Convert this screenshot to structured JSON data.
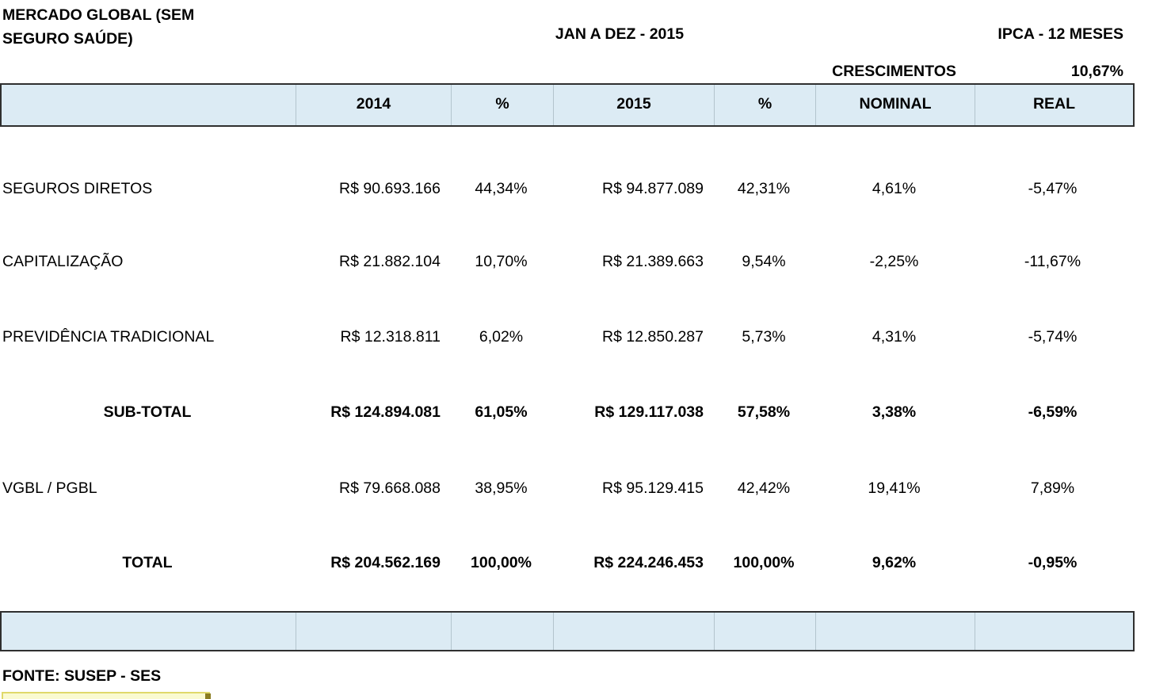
{
  "titles": {
    "report": "MERCADO GLOBAL (SEM SEGURO SAÚDE)",
    "period": "JAN A DEZ - 2015",
    "ipca": "IPCA - 12 MESES",
    "crescimentos": "CRESCIMENTOS",
    "ipca_value": "10,67%"
  },
  "table": {
    "columns": [
      "2014",
      "%",
      "2015",
      "%",
      "NOMINAL",
      "REAL"
    ],
    "rows": [
      {
        "label": "SEGUROS DIRETOS",
        "v2014": "R$ 90.693.166",
        "p2014": "44,34%",
        "v2015": "R$ 94.877.089",
        "p2015": "42,31%",
        "nominal": "4,61%",
        "real": "-5,47%"
      },
      {
        "label": "CAPITALIZAÇÃO",
        "v2014": "R$ 21.882.104",
        "p2014": "10,70%",
        "v2015": "R$ 21.389.663",
        "p2015": "9,54%",
        "nominal": "-2,25%",
        "real": "-11,67%"
      },
      {
        "label": "PREVIDÊNCIA TRADICIONAL",
        "v2014": "R$ 12.318.811",
        "p2014": "6,02%",
        "v2015": "R$ 12.850.287",
        "p2015": "5,73%",
        "nominal": "4,31%",
        "real": "-5,74%"
      },
      {
        "label": "SUB-TOTAL",
        "v2014": "R$ 124.894.081",
        "p2014": "61,05%",
        "v2015": "R$ 129.117.038",
        "p2015": "57,58%",
        "nominal": "3,38%",
        "real": "-6,59%"
      },
      {
        "label": "VGBL / PGBL",
        "v2014": "R$ 79.668.088",
        "p2014": "38,95%",
        "v2015": "R$ 95.129.415",
        "p2015": "42,42%",
        "nominal": "19,41%",
        "real": "7,89%"
      },
      {
        "label": "TOTAL",
        "v2014": "R$ 204.562.169",
        "p2014": "100,00%",
        "v2015": "R$ 224.246.453",
        "p2015": "100,00%",
        "nominal": "9,62%",
        "real": "-0,95%"
      }
    ]
  },
  "footer": {
    "source": "FONTE: SUSEP - SES"
  },
  "colors": {
    "band_fill": "#dcebf4",
    "band_border": "#2f2f2f",
    "selected_cell_fill": "#fafad0",
    "selected_cell_border": "#e0d96a"
  }
}
